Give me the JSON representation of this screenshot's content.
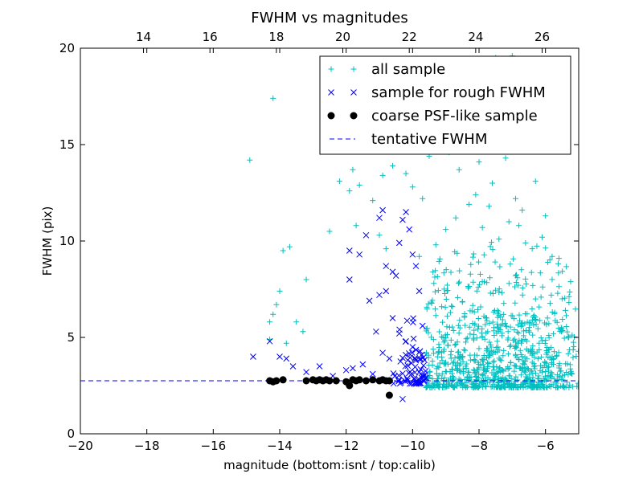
{
  "chart_data": {
    "type": "scatter",
    "title": "FWHM vs magnitudes",
    "xlabel": "magnitude (bottom:isnt / top:calib)",
    "ylabel": "FWHM (pix)",
    "xlim": [
      -20,
      -5
    ],
    "ylim": [
      0,
      20
    ],
    "xticks": [
      -20,
      -18,
      -16,
      -14,
      -12,
      -10,
      -8,
      -6
    ],
    "xtick_labels": [
      "−20",
      "−18",
      "−16",
      "−14",
      "−12",
      "−10",
      "−8",
      "−6"
    ],
    "yticks": [
      0,
      5,
      10,
      15,
      20
    ],
    "ytick_labels": [
      "0",
      "5",
      "10",
      "15",
      "20"
    ],
    "top_axis": {
      "ticks": [
        14,
        16,
        18,
        20,
        22,
        24,
        26
      ],
      "tick_labels": [
        "14",
        "16",
        "18",
        "20",
        "22",
        "24",
        "26"
      ],
      "offset": 32.1
    },
    "grid": false,
    "legend_position": "top-right",
    "series": [
      {
        "name": "all sample",
        "marker": "plus",
        "color": "#00bfbf",
        "points": [
          [
            -14.9,
            14.2
          ],
          [
            -14.2,
            17.4
          ],
          [
            -13.9,
            9.5
          ],
          [
            -13.7,
            9.7
          ],
          [
            -14.0,
            7.4
          ],
          [
            -14.1,
            6.7
          ],
          [
            -14.2,
            6.2
          ],
          [
            -14.3,
            5.8
          ],
          [
            -13.2,
            8.0
          ],
          [
            -13.5,
            5.8
          ],
          [
            -13.3,
            5.3
          ],
          [
            -14.3,
            4.9
          ],
          [
            -13.8,
            4.7
          ],
          [
            -12.2,
            13.1
          ],
          [
            -11.9,
            12.6
          ],
          [
            -11.6,
            12.9
          ],
          [
            -11.8,
            13.7
          ],
          [
            -11.2,
            12.1
          ],
          [
            -10.9,
            13.4
          ],
          [
            -10.6,
            13.9
          ],
          [
            -10.2,
            13.5
          ],
          [
            -10.0,
            12.8
          ],
          [
            -9.7,
            12.2
          ],
          [
            -12.5,
            10.5
          ],
          [
            -11.7,
            10.8
          ],
          [
            -11.0,
            10.3
          ],
          [
            -10.8,
            9.6
          ],
          [
            -9.5,
            14.4
          ],
          [
            -9.1,
            14.7
          ],
          [
            -8.8,
            15.9
          ],
          [
            -8.4,
            16.6
          ],
          [
            -8.2,
            19.4
          ],
          [
            -7.8,
            19.2
          ],
          [
            -7.5,
            19.5
          ],
          [
            -7.3,
            18.9
          ],
          [
            -7.0,
            19.6
          ],
          [
            -8.9,
            14.6
          ],
          [
            -8.6,
            13.7
          ],
          [
            -8.0,
            14.1
          ],
          [
            -7.6,
            13.0
          ],
          [
            -7.2,
            14.3
          ],
          [
            -6.9,
            12.2
          ],
          [
            -6.7,
            11.6
          ],
          [
            -6.3,
            13.1
          ],
          [
            -6.0,
            11.3
          ],
          [
            -5.8,
            9.2
          ],
          [
            -6.1,
            10.2
          ],
          [
            -6.4,
            9.6
          ],
          [
            -5.5,
            7.0
          ],
          [
            -5.3,
            5.0
          ],
          [
            -5.4,
            6.4
          ],
          [
            -5.2,
            3.1
          ],
          [
            -9.8,
            9.2
          ],
          [
            -9.3,
            9.8
          ],
          [
            -9.0,
            10.6
          ],
          [
            -8.7,
            11.2
          ],
          [
            -8.3,
            11.9
          ],
          [
            -8.1,
            12.4
          ],
          [
            -7.9,
            10.7
          ],
          [
            -7.7,
            11.8
          ],
          [
            -7.4,
            10.1
          ],
          [
            -7.1,
            11.0
          ],
          [
            -6.8,
            10.8
          ],
          [
            -6.6,
            9.9
          ]
        ],
        "cluster": {
          "x": [
            -9.6,
            -5.0
          ],
          "y": [
            2.4,
            10.0
          ],
          "count": 900,
          "center": [
            -7.6,
            4.3
          ]
        }
      },
      {
        "name": "sample for rough FWHM",
        "marker": "x",
        "color": "#0000ff",
        "points": [
          [
            -14.8,
            4.0
          ],
          [
            -14.3,
            4.8
          ],
          [
            -14.0,
            4.0
          ],
          [
            -13.8,
            3.9
          ],
          [
            -13.6,
            3.5
          ],
          [
            -13.2,
            3.2
          ],
          [
            -12.8,
            3.5
          ],
          [
            -12.4,
            3.0
          ],
          [
            -12.0,
            3.3
          ],
          [
            -11.8,
            3.4
          ],
          [
            -11.5,
            3.6
          ],
          [
            -11.2,
            3.1
          ],
          [
            -11.9,
            8.0
          ],
          [
            -11.9,
            9.5
          ],
          [
            -11.6,
            9.3
          ],
          [
            -11.4,
            10.3
          ],
          [
            -11.3,
            6.9
          ],
          [
            -11.0,
            7.2
          ],
          [
            -11.0,
            11.2
          ],
          [
            -10.9,
            11.6
          ],
          [
            -10.8,
            8.7
          ],
          [
            -10.8,
            7.4
          ],
          [
            -10.6,
            8.4
          ],
          [
            -10.5,
            8.2
          ],
          [
            -10.4,
            9.9
          ],
          [
            -10.3,
            11.1
          ],
          [
            -10.2,
            11.5
          ],
          [
            -10.1,
            10.6
          ],
          [
            -10.0,
            9.3
          ],
          [
            -9.9,
            8.7
          ],
          [
            -9.8,
            7.4
          ],
          [
            -10.6,
            6.0
          ],
          [
            -10.4,
            5.2
          ],
          [
            -10.2,
            4.8
          ],
          [
            -10.0,
            4.5
          ],
          [
            -9.9,
            3.8
          ],
          [
            -9.8,
            3.2
          ],
          [
            -9.7,
            5.6
          ],
          [
            -10.9,
            4.2
          ],
          [
            -10.7,
            3.9
          ],
          [
            -11.1,
            5.3
          ],
          [
            -10.3,
            1.8
          ],
          [
            -9.6,
            2.9
          ],
          [
            -9.9,
            2.6
          ]
        ],
        "cluster": {
          "x": [
            -10.6,
            -9.6
          ],
          "y": [
            2.6,
            6.5
          ],
          "count": 70,
          "center": [
            -9.9,
            3.6
          ]
        }
      },
      {
        "name": "coarse PSF-like sample",
        "marker": "circle",
        "color": "#000000",
        "points": [
          [
            -14.3,
            2.75
          ],
          [
            -14.2,
            2.7
          ],
          [
            -14.1,
            2.75
          ],
          [
            -13.9,
            2.8
          ],
          [
            -13.2,
            2.75
          ],
          [
            -13.0,
            2.8
          ],
          [
            -12.9,
            2.75
          ],
          [
            -12.8,
            2.8
          ],
          [
            -12.7,
            2.75
          ],
          [
            -12.6,
            2.8
          ],
          [
            -12.5,
            2.75
          ],
          [
            -12.3,
            2.75
          ],
          [
            -12.0,
            2.7
          ],
          [
            -11.9,
            2.5
          ],
          [
            -11.8,
            2.8
          ],
          [
            -11.7,
            2.75
          ],
          [
            -11.6,
            2.8
          ],
          [
            -11.4,
            2.75
          ],
          [
            -11.2,
            2.8
          ],
          [
            -11.0,
            2.75
          ],
          [
            -10.9,
            2.8
          ],
          [
            -10.8,
            2.75
          ],
          [
            -10.7,
            2.0
          ],
          [
            -10.7,
            2.75
          ]
        ]
      },
      {
        "name": "tentative FWHM",
        "marker": "dashed-line",
        "color": "#0000ff",
        "y": 2.75
      }
    ]
  }
}
